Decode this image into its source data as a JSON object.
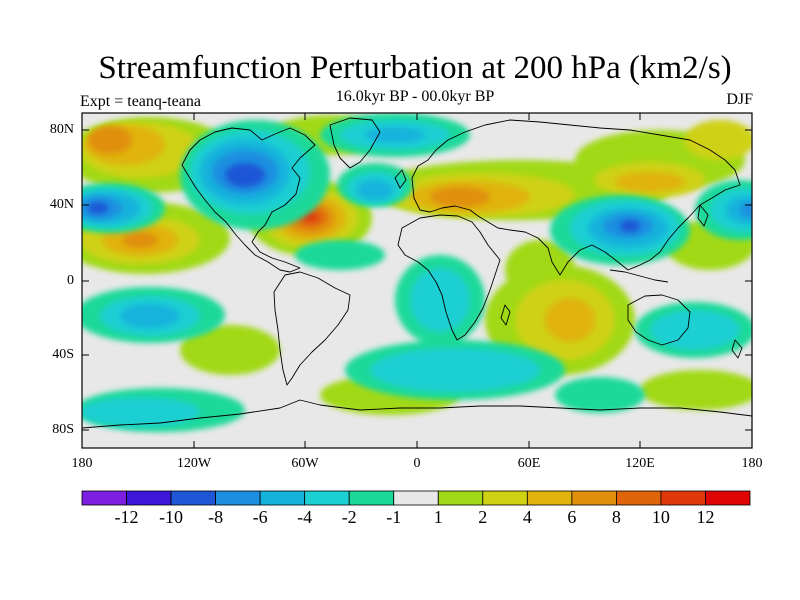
{
  "title": "Streamfunction Perturbation at 200 hPa (km2/s)",
  "subtitle": "16.0kyr BP - 00.0kyr BP",
  "left_label": "Expt = teanq-teana",
  "right_label": "DJF",
  "lat_labels": [
    "80N",
    "40N",
    "0",
    "40S",
    "80S"
  ],
  "lon_labels": [
    "180",
    "120W",
    "60W",
    "0",
    "60E",
    "120E",
    "180"
  ],
  "colorbar": {
    "labels": [
      "-12",
      "-10",
      "-8",
      "-6",
      "-4",
      "-2",
      "-1",
      "1",
      "2",
      "4",
      "6",
      "8",
      "10",
      "12"
    ],
    "colors": [
      "#7d1fe0",
      "#3d18d9",
      "#1e56d6",
      "#1e8fe0",
      "#14b3dc",
      "#1ccfd2",
      "#1cd99a",
      "#e8e8e8",
      "#a2d916",
      "#cfd113",
      "#e0b30e",
      "#e0900a",
      "#e0650a",
      "#e0380a",
      "#e00505"
    ]
  },
  "chart_data": {
    "type": "filled-contour-map",
    "variable": "Streamfunction Perturbation at 200 hPa (km2/s)",
    "period": "16.0kyr BP - 00.0kyr BP",
    "season": "DJF",
    "levels": [
      -12,
      -10,
      -8,
      -6,
      -4,
      -2,
      -1,
      1,
      2,
      4,
      6,
      8,
      10,
      12
    ],
    "lon_range": [
      -180,
      180
    ],
    "lat_range": [
      -90,
      90
    ],
    "anomalies": [
      {
        "lon": -60,
        "lat": 35,
        "value": 11,
        "sign": "positive"
      },
      {
        "lon": -90,
        "lat": 55,
        "value": -9,
        "sign": "negative"
      },
      {
        "lon": -20,
        "lat": 48,
        "value": -6,
        "sign": "negative"
      },
      {
        "lon": -173,
        "lat": 40,
        "value": -8,
        "sign": "negative"
      },
      {
        "lon": -155,
        "lat": 22,
        "value": 6,
        "sign": "positive"
      },
      {
        "lon": -163,
        "lat": 70,
        "value": 7,
        "sign": "positive"
      },
      {
        "lon": 20,
        "lat": 42,
        "value": 7,
        "sign": "positive"
      },
      {
        "lon": 118,
        "lat": 30,
        "value": -8,
        "sign": "negative"
      },
      {
        "lon": 138,
        "lat": 50,
        "value": 5,
        "sign": "positive"
      },
      {
        "lon": 175,
        "lat": 40,
        "value": -6,
        "sign": "negative"
      },
      {
        "lon": 90,
        "lat": -20,
        "value": 5,
        "sign": "positive"
      },
      {
        "lon": -143,
        "lat": -15,
        "value": -4,
        "sign": "negative"
      },
      {
        "lon": 145,
        "lat": -25,
        "value": -4,
        "sign": "negative"
      },
      {
        "lon": 45,
        "lat": -47,
        "value": -3,
        "sign": "negative"
      }
    ]
  }
}
